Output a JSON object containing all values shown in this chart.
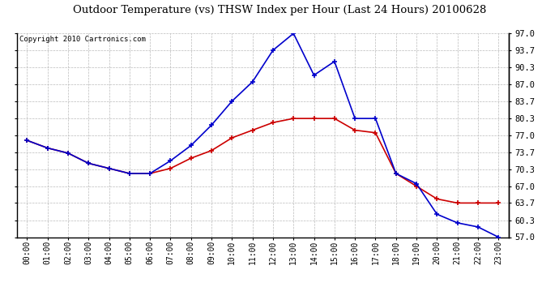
{
  "title": "Outdoor Temperature (vs) THSW Index per Hour (Last 24 Hours) 20100628",
  "copyright": "Copyright 2010 Cartronics.com",
  "hours": [
    "00:00",
    "01:00",
    "02:00",
    "03:00",
    "04:00",
    "05:00",
    "06:00",
    "07:00",
    "08:00",
    "09:00",
    "10:00",
    "11:00",
    "12:00",
    "13:00",
    "14:00",
    "15:00",
    "16:00",
    "17:00",
    "18:00",
    "19:00",
    "20:00",
    "21:00",
    "22:00",
    "23:00"
  ],
  "temp_red": [
    76.0,
    74.5,
    73.5,
    71.5,
    70.5,
    69.5,
    69.5,
    70.5,
    72.5,
    74.0,
    76.5,
    78.0,
    79.5,
    80.3,
    80.3,
    80.3,
    78.0,
    77.5,
    69.5,
    67.0,
    64.5,
    63.7,
    63.7,
    63.7
  ],
  "thsw_blue": [
    76.0,
    74.5,
    73.5,
    71.5,
    70.5,
    69.5,
    69.5,
    72.0,
    75.0,
    79.0,
    83.7,
    87.5,
    93.7,
    97.0,
    88.8,
    91.5,
    80.3,
    80.3,
    69.5,
    67.5,
    61.5,
    59.8,
    59.0,
    57.0
  ],
  "ylim": [
    57.0,
    97.0
  ],
  "yticks": [
    57.0,
    60.3,
    63.7,
    67.0,
    70.3,
    73.7,
    77.0,
    80.3,
    83.7,
    87.0,
    90.3,
    93.7,
    97.0
  ],
  "red_color": "#cc0000",
  "blue_color": "#0000cc",
  "background_color": "#ffffff",
  "grid_color": "#bbbbbb",
  "title_fontsize": 9.5,
  "copyright_fontsize": 6.5,
  "tick_fontsize": 7,
  "ytick_fontsize": 7.5
}
